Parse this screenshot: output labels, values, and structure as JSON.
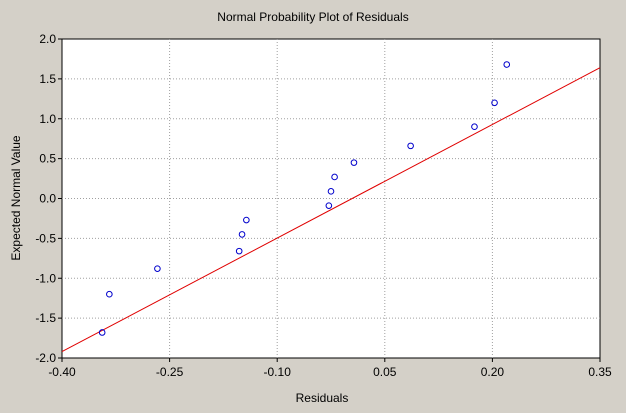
{
  "chart_data": {
    "type": "scatter",
    "title": "Normal Probability Plot of Residuals",
    "xlabel": "Residuals",
    "ylabel": "Expected Normal Value",
    "xlim": [
      -0.4,
      0.35
    ],
    "ylim": [
      -2.0,
      2.0
    ],
    "x_ticks": [
      -0.4,
      -0.25,
      -0.1,
      0.05,
      0.2,
      0.35
    ],
    "x_tick_labels": [
      "-0.40",
      "-0.25",
      "-0.10",
      "0.05",
      "0.20",
      "0.35"
    ],
    "y_ticks": [
      2.0,
      1.5,
      1.0,
      0.5,
      0.0,
      -0.5,
      -1.0,
      -1.5,
      -2.0
    ],
    "y_tick_labels": [
      "2.0",
      "1.5",
      "1.0",
      "0.5",
      "0.0",
      "-0.5",
      "-1.0",
      "-1.5",
      "-2.0"
    ],
    "grid": true,
    "series": [
      {
        "x": [
          -0.344,
          -0.334,
          -0.267,
          -0.153,
          -0.149,
          -0.143,
          -0.028,
          -0.025,
          -0.02,
          0.007,
          0.086,
          0.175,
          0.203
        ],
        "y": [
          -1.68,
          -1.2,
          -0.88,
          -0.66,
          -0.45,
          -0.27,
          -0.09,
          0.09,
          0.27,
          0.45,
          0.66,
          0.9,
          1.2
        ]
      },
      {
        "x": [
          0.22
        ],
        "y": [
          1.68
        ]
      }
    ],
    "fit_line": {
      "x": [
        -0.4,
        0.35
      ],
      "y": [
        -1.92,
        1.64
      ]
    },
    "colors": {
      "points": "#0000cc",
      "fit_line": "#e00000",
      "background": "#d4d0c8",
      "plot_area": "#ffffff",
      "grid": "#a0a0a0"
    }
  }
}
